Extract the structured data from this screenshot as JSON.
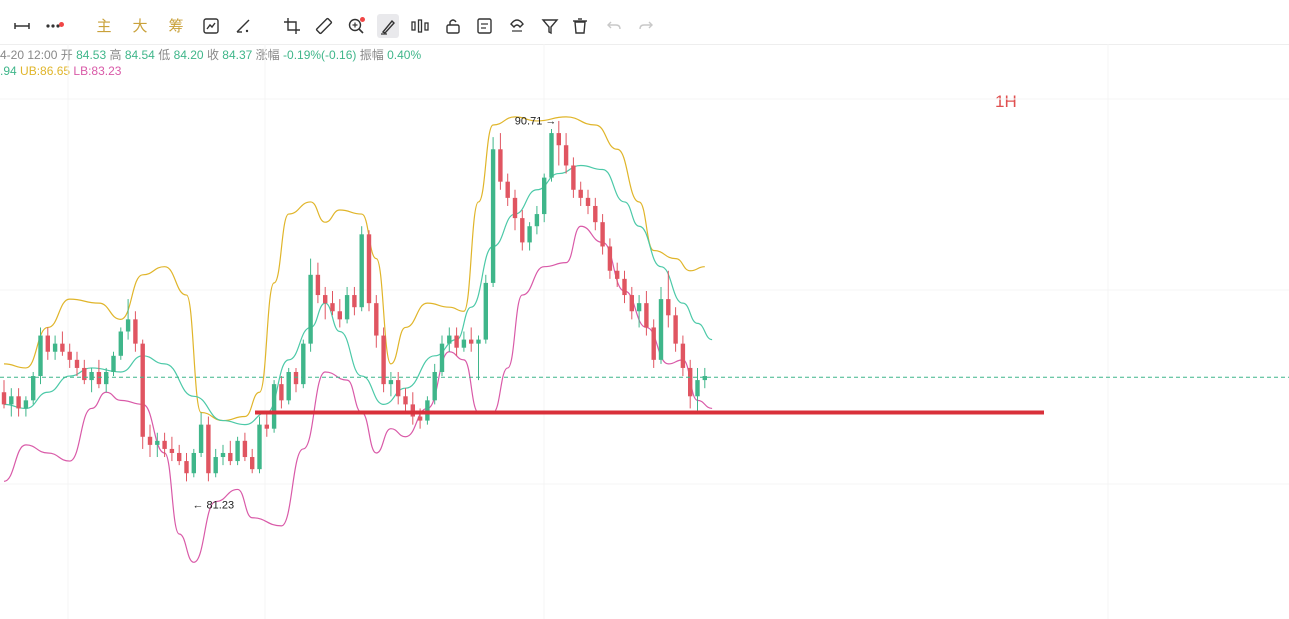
{
  "toolbar": {
    "labels": {
      "main": "主",
      "big": "大",
      "chip": "筹"
    },
    "icons": [
      "horizontal-line-icon",
      "more-icon",
      "main-indicator",
      "big-order",
      "chip-distribution",
      "replay-icon",
      "measure-icon",
      "crop-icon",
      "ruler-icon",
      "zoom-icon",
      "brush-icon",
      "drawing-tools-icon",
      "lock-icon",
      "text-note-icon",
      "magnet-icon",
      "filter-icon",
      "trash-icon",
      "undo-icon",
      "redo-icon"
    ]
  },
  "info": {
    "time": "4-20 12:00",
    "open_label": "开",
    "open": "84.53",
    "high_label": "高",
    "high": "84.54",
    "low_label": "低",
    "low": "84.20",
    "close_label": "收",
    "close": "84.37",
    "change_label": "涨幅",
    "change": "-0.19%(-0.16)",
    "amp_label": "振幅",
    "amp": "0.40%",
    "mid_value": ".94",
    "ub": "UB:86.65",
    "lb": "LB:83.23"
  },
  "timeframe": "1H",
  "annotations": {
    "high": "90.71 →",
    "low": "← 81.23"
  },
  "colors": {
    "up": "#3fb68a",
    "down": "#e05561",
    "ub": "#e0b52a",
    "mid": "#4cc9a8",
    "lb": "#d95aa8",
    "support": "#d9303a",
    "dashed": "#3fb68a"
  },
  "chart_data": {
    "type": "candlestick",
    "ylim": [
      78.4,
      92.6
    ],
    "current_price": 84.37,
    "support_level": 83.5,
    "high_annotation": 90.71,
    "low_annotation": 81.23,
    "bollinger": {
      "ub": [
        [
          0,
          84.7
        ],
        [
          3,
          84.6
        ],
        [
          6,
          85.6
        ],
        [
          9,
          86.3
        ],
        [
          13,
          86.2
        ],
        [
          16,
          85.8
        ],
        [
          19,
          86.9
        ],
        [
          22,
          87.1
        ],
        [
          25,
          86.4
        ],
        [
          27,
          83.5
        ],
        [
          30,
          83.3
        ],
        [
          33,
          83.4
        ],
        [
          35,
          84.0
        ],
        [
          37,
          86.7
        ],
        [
          39,
          88.4
        ],
        [
          42,
          88.7
        ],
        [
          44,
          88.2
        ],
        [
          46,
          88.5
        ],
        [
          49,
          88.4
        ],
        [
          51,
          87.3
        ],
        [
          53,
          84.7
        ],
        [
          55,
          85.6
        ],
        [
          58,
          86.2
        ],
        [
          61,
          86.1
        ],
        [
          63,
          86.0
        ],
        [
          65,
          88.7
        ],
        [
          67,
          90.6
        ],
        [
          70,
          90.8
        ],
        [
          73,
          90.7
        ],
        [
          77,
          90.8
        ],
        [
          81,
          90.6
        ],
        [
          84,
          90.0
        ],
        [
          87,
          88.7
        ],
        [
          89,
          87.5
        ],
        [
          92,
          87.3
        ],
        [
          94,
          87.0
        ],
        [
          96,
          87.1
        ]
      ],
      "mid": [
        [
          0,
          83.7
        ],
        [
          3,
          83.6
        ],
        [
          6,
          84.0
        ],
        [
          9,
          84.4
        ],
        [
          12,
          84.6
        ],
        [
          16,
          84.5
        ],
        [
          19,
          84.9
        ],
        [
          22,
          84.7
        ],
        [
          26,
          83.9
        ],
        [
          30,
          83.3
        ],
        [
          33,
          83.2
        ],
        [
          36,
          83.5
        ],
        [
          39,
          84.8
        ],
        [
          42,
          85.6
        ],
        [
          44,
          86.2
        ],
        [
          46,
          85.5
        ],
        [
          49,
          84.4
        ],
        [
          52,
          83.7
        ],
        [
          55,
          84.1
        ],
        [
          59,
          84.9
        ],
        [
          62,
          85.3
        ],
        [
          64,
          86.1
        ],
        [
          67,
          87.6
        ],
        [
          70,
          88.4
        ],
        [
          73,
          89.0
        ],
        [
          76,
          89.4
        ],
        [
          79,
          89.6
        ],
        [
          82,
          89.5
        ],
        [
          85,
          88.7
        ],
        [
          87,
          88.1
        ],
        [
          90,
          87.1
        ],
        [
          93,
          86.2
        ],
        [
          95,
          85.7
        ],
        [
          97,
          85.3
        ]
      ],
      "lb": [
        [
          0,
          81.8
        ],
        [
          3,
          82.7
        ],
        [
          6,
          82.5
        ],
        [
          9,
          82.3
        ],
        [
          12,
          83.6
        ],
        [
          14,
          84.0
        ],
        [
          16,
          83.8
        ],
        [
          19,
          83.7
        ],
        [
          22,
          82.5
        ],
        [
          24,
          80.5
        ],
        [
          26,
          79.8
        ],
        [
          29,
          81.3
        ],
        [
          32,
          81.6
        ],
        [
          34,
          80.9
        ],
        [
          38,
          80.7
        ],
        [
          41,
          82.6
        ],
        [
          44,
          84.5
        ],
        [
          47,
          84.3
        ],
        [
          49,
          83.5
        ],
        [
          51,
          82.5
        ],
        [
          53,
          83.1
        ],
        [
          55,
          82.9
        ],
        [
          58,
          83.6
        ],
        [
          61,
          85.0
        ],
        [
          63,
          84.8
        ],
        [
          65,
          83.5
        ],
        [
          67,
          83.5
        ],
        [
          69,
          84.6
        ],
        [
          71,
          86.4
        ],
        [
          74,
          87.1
        ],
        [
          77,
          87.2
        ],
        [
          79,
          88.1
        ],
        [
          82,
          87.7
        ],
        [
          85,
          86.5
        ],
        [
          88,
          85.6
        ],
        [
          91,
          84.7
        ],
        [
          93,
          84.8
        ],
        [
          95,
          83.8
        ],
        [
          97,
          83.6
        ]
      ]
    },
    "candles": [
      [
        84.0,
        84.3,
        83.6,
        83.7
      ],
      [
        83.7,
        84.1,
        83.4,
        83.9
      ],
      [
        83.9,
        84.1,
        83.4,
        83.6
      ],
      [
        83.6,
        83.9,
        83.4,
        83.8
      ],
      [
        83.8,
        84.5,
        83.7,
        84.4
      ],
      [
        84.4,
        85.6,
        84.2,
        85.4
      ],
      [
        85.4,
        85.6,
        84.8,
        85.0
      ],
      [
        85.0,
        85.4,
        84.8,
        85.2
      ],
      [
        85.2,
        85.5,
        84.9,
        85.0
      ],
      [
        85.0,
        85.2,
        84.6,
        84.8
      ],
      [
        84.8,
        85.0,
        84.4,
        84.6
      ],
      [
        84.6,
        84.8,
        84.2,
        84.3
      ],
      [
        84.3,
        84.6,
        84.0,
        84.5
      ],
      [
        84.5,
        84.8,
        84.1,
        84.2
      ],
      [
        84.2,
        84.6,
        84.0,
        84.5
      ],
      [
        84.5,
        85.0,
        84.4,
        84.9
      ],
      [
        84.9,
        85.6,
        84.8,
        85.5
      ],
      [
        85.5,
        86.3,
        85.3,
        85.8
      ],
      [
        85.8,
        86.0,
        85.0,
        85.2
      ],
      [
        85.2,
        85.3,
        82.6,
        82.9
      ],
      [
        82.9,
        83.2,
        82.4,
        82.7
      ],
      [
        82.7,
        83.0,
        82.4,
        82.8
      ],
      [
        82.8,
        83.0,
        82.4,
        82.6
      ],
      [
        82.6,
        82.9,
        82.3,
        82.5
      ],
      [
        82.5,
        82.7,
        82.2,
        82.3
      ],
      [
        82.3,
        82.5,
        81.8,
        82.0
      ],
      [
        82.0,
        82.6,
        81.9,
        82.5
      ],
      [
        82.5,
        83.5,
        82.4,
        83.2
      ],
      [
        83.2,
        83.4,
        81.8,
        82.0
      ],
      [
        82.0,
        82.6,
        81.9,
        82.4
      ],
      [
        82.4,
        82.7,
        82.2,
        82.5
      ],
      [
        82.5,
        82.8,
        82.2,
        82.3
      ],
      [
        82.3,
        82.9,
        82.2,
        82.8
      ],
      [
        82.8,
        83.0,
        82.3,
        82.4
      ],
      [
        82.4,
        82.6,
        82.0,
        82.1
      ],
      [
        82.1,
        83.4,
        82.0,
        83.2
      ],
      [
        83.2,
        83.5,
        82.9,
        83.1
      ],
      [
        83.1,
        84.3,
        83.0,
        84.2
      ],
      [
        84.2,
        84.4,
        83.6,
        83.8
      ],
      [
        83.8,
        84.6,
        83.7,
        84.5
      ],
      [
        84.5,
        84.6,
        84.0,
        84.2
      ],
      [
        84.2,
        85.3,
        84.1,
        85.2
      ],
      [
        85.2,
        87.3,
        85.0,
        86.9
      ],
      [
        86.9,
        87.2,
        86.2,
        86.4
      ],
      [
        86.4,
        86.6,
        85.8,
        86.2
      ],
      [
        86.2,
        86.5,
        85.9,
        86.0
      ],
      [
        86.0,
        86.3,
        85.6,
        85.8
      ],
      [
        85.8,
        86.6,
        85.7,
        86.4
      ],
      [
        86.4,
        86.6,
        85.9,
        86.1
      ],
      [
        86.1,
        88.1,
        86.0,
        87.9
      ],
      [
        87.9,
        88.0,
        86.0,
        86.2
      ],
      [
        86.2,
        86.4,
        85.1,
        85.4
      ],
      [
        85.4,
        85.6,
        84.0,
        84.2
      ],
      [
        84.2,
        84.5,
        83.9,
        84.3
      ],
      [
        84.3,
        84.5,
        83.7,
        83.9
      ],
      [
        83.9,
        84.1,
        83.5,
        83.7
      ],
      [
        83.7,
        84.0,
        83.2,
        83.4
      ],
      [
        83.4,
        83.6,
        83.1,
        83.3
      ],
      [
        83.3,
        83.9,
        83.2,
        83.8
      ],
      [
        83.8,
        84.7,
        83.7,
        84.5
      ],
      [
        84.5,
        85.4,
        84.4,
        85.2
      ],
      [
        85.2,
        85.6,
        85.0,
        85.4
      ],
      [
        85.4,
        85.6,
        84.9,
        85.1
      ],
      [
        85.1,
        85.5,
        85.0,
        85.3
      ],
      [
        85.3,
        85.6,
        85.0,
        85.2
      ],
      [
        85.2,
        85.4,
        84.3,
        85.3
      ],
      [
        85.3,
        86.9,
        85.2,
        86.7
      ],
      [
        86.7,
        90.3,
        86.6,
        90.0
      ],
      [
        90.0,
        90.4,
        89.0,
        89.2
      ],
      [
        89.2,
        89.4,
        88.6,
        88.8
      ],
      [
        88.8,
        89.0,
        88.0,
        88.3
      ],
      [
        88.3,
        88.5,
        87.5,
        87.7
      ],
      [
        87.7,
        88.2,
        87.5,
        88.1
      ],
      [
        88.1,
        88.6,
        87.9,
        88.4
      ],
      [
        88.4,
        89.4,
        88.2,
        89.3
      ],
      [
        89.3,
        90.5,
        89.2,
        90.4
      ],
      [
        90.4,
        90.7,
        89.6,
        90.1
      ],
      [
        90.1,
        90.4,
        89.4,
        89.6
      ],
      [
        89.6,
        89.8,
        88.8,
        89.0
      ],
      [
        89.0,
        89.2,
        88.6,
        88.8
      ],
      [
        88.8,
        89.0,
        88.4,
        88.6
      ],
      [
        88.6,
        88.8,
        88.0,
        88.2
      ],
      [
        88.2,
        88.4,
        87.4,
        87.6
      ],
      [
        87.6,
        87.8,
        86.8,
        87.0
      ],
      [
        87.0,
        87.2,
        86.6,
        86.8
      ],
      [
        86.8,
        87.0,
        86.2,
        86.4
      ],
      [
        86.4,
        86.6,
        85.8,
        86.0
      ],
      [
        86.0,
        86.4,
        85.6,
        86.2
      ],
      [
        86.2,
        86.5,
        85.4,
        85.6
      ],
      [
        85.6,
        85.8,
        84.6,
        84.8
      ],
      [
        84.8,
        86.6,
        84.7,
        86.3
      ],
      [
        86.3,
        87.0,
        85.6,
        85.9
      ],
      [
        85.9,
        86.1,
        85.0,
        85.2
      ],
      [
        85.2,
        85.4,
        84.4,
        84.6
      ],
      [
        84.6,
        84.8,
        83.6,
        83.9
      ],
      [
        83.9,
        84.6,
        83.5,
        84.3
      ],
      [
        84.3,
        84.6,
        84.1,
        84.4
      ]
    ]
  }
}
